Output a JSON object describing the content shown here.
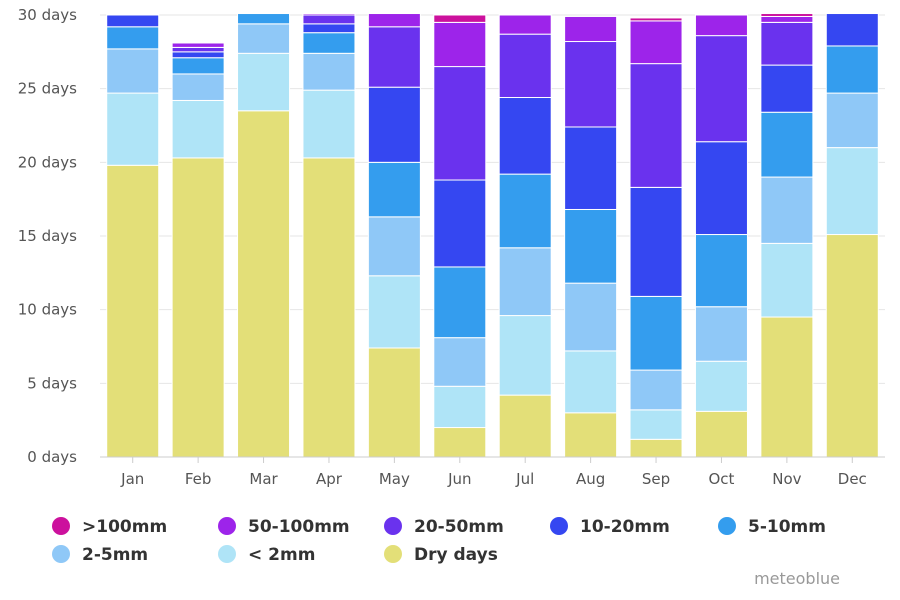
{
  "credit": "meteoblue",
  "chart_data": {
    "type": "bar",
    "stacked": true,
    "categories": [
      "Jan",
      "Feb",
      "Mar",
      "Apr",
      "May",
      "Jun",
      "Jul",
      "Aug",
      "Sep",
      "Oct",
      "Nov",
      "Dec"
    ],
    "ylim": [
      0,
      30
    ],
    "yticks": [
      0,
      5,
      10,
      15,
      20,
      25,
      30
    ],
    "ytick_suffix": " days",
    "grid": true,
    "legend_position": "bottom",
    "series": [
      {
        "name": "Dry days",
        "color": "#E3DF78",
        "values": [
          19.8,
          20.3,
          23.5,
          20.3,
          7.4,
          2.0,
          4.2,
          3.0,
          1.2,
          3.1,
          9.5,
          15.1
        ]
      },
      {
        "name": "< 2mm",
        "color": "#AFE4F7",
        "values": [
          4.9,
          3.9,
          3.9,
          4.6,
          4.9,
          2.8,
          5.4,
          4.2,
          2.0,
          3.4,
          5.0,
          5.9
        ]
      },
      {
        "name": "2-5mm",
        "color": "#8FC8F7",
        "values": [
          3.0,
          1.8,
          2.0,
          2.5,
          4.0,
          3.3,
          4.6,
          4.6,
          2.7,
          3.7,
          4.5,
          3.7
        ]
      },
      {
        "name": "5-10mm",
        "color": "#349DEE",
        "values": [
          1.5,
          1.1,
          0.7,
          1.4,
          3.7,
          4.8,
          5.0,
          5.0,
          5.0,
          4.9,
          4.4,
          3.2
        ]
      },
      {
        "name": "10-20mm",
        "color": "#3547F1",
        "values": [
          0.8,
          0.4,
          0,
          0.6,
          5.1,
          5.9,
          5.2,
          5.6,
          7.4,
          6.3,
          3.2,
          2.2
        ]
      },
      {
        "name": "20-50mm",
        "color": "#6A32EE",
        "values": [
          0,
          0.3,
          0,
          0.6,
          4.1,
          7.7,
          4.3,
          5.8,
          8.4,
          7.2,
          2.9,
          0
        ]
      },
      {
        "name": "50-100mm",
        "color": "#9D24EA",
        "values": [
          0,
          0.3,
          0,
          0.1,
          0.9,
          3.0,
          1.3,
          1.7,
          2.9,
          1.4,
          0.4,
          0
        ]
      },
      {
        "name": ">100mm",
        "color": "#CC119D",
        "values": [
          0,
          0,
          0,
          0,
          0,
          0.5,
          0,
          0,
          0.2,
          0,
          0.2,
          0
        ]
      }
    ],
    "legend": [
      ">100mm",
      "50-100mm",
      "20-50mm",
      "10-20mm",
      "5-10mm",
      "2-5mm",
      "< 2mm",
      "Dry days"
    ]
  }
}
